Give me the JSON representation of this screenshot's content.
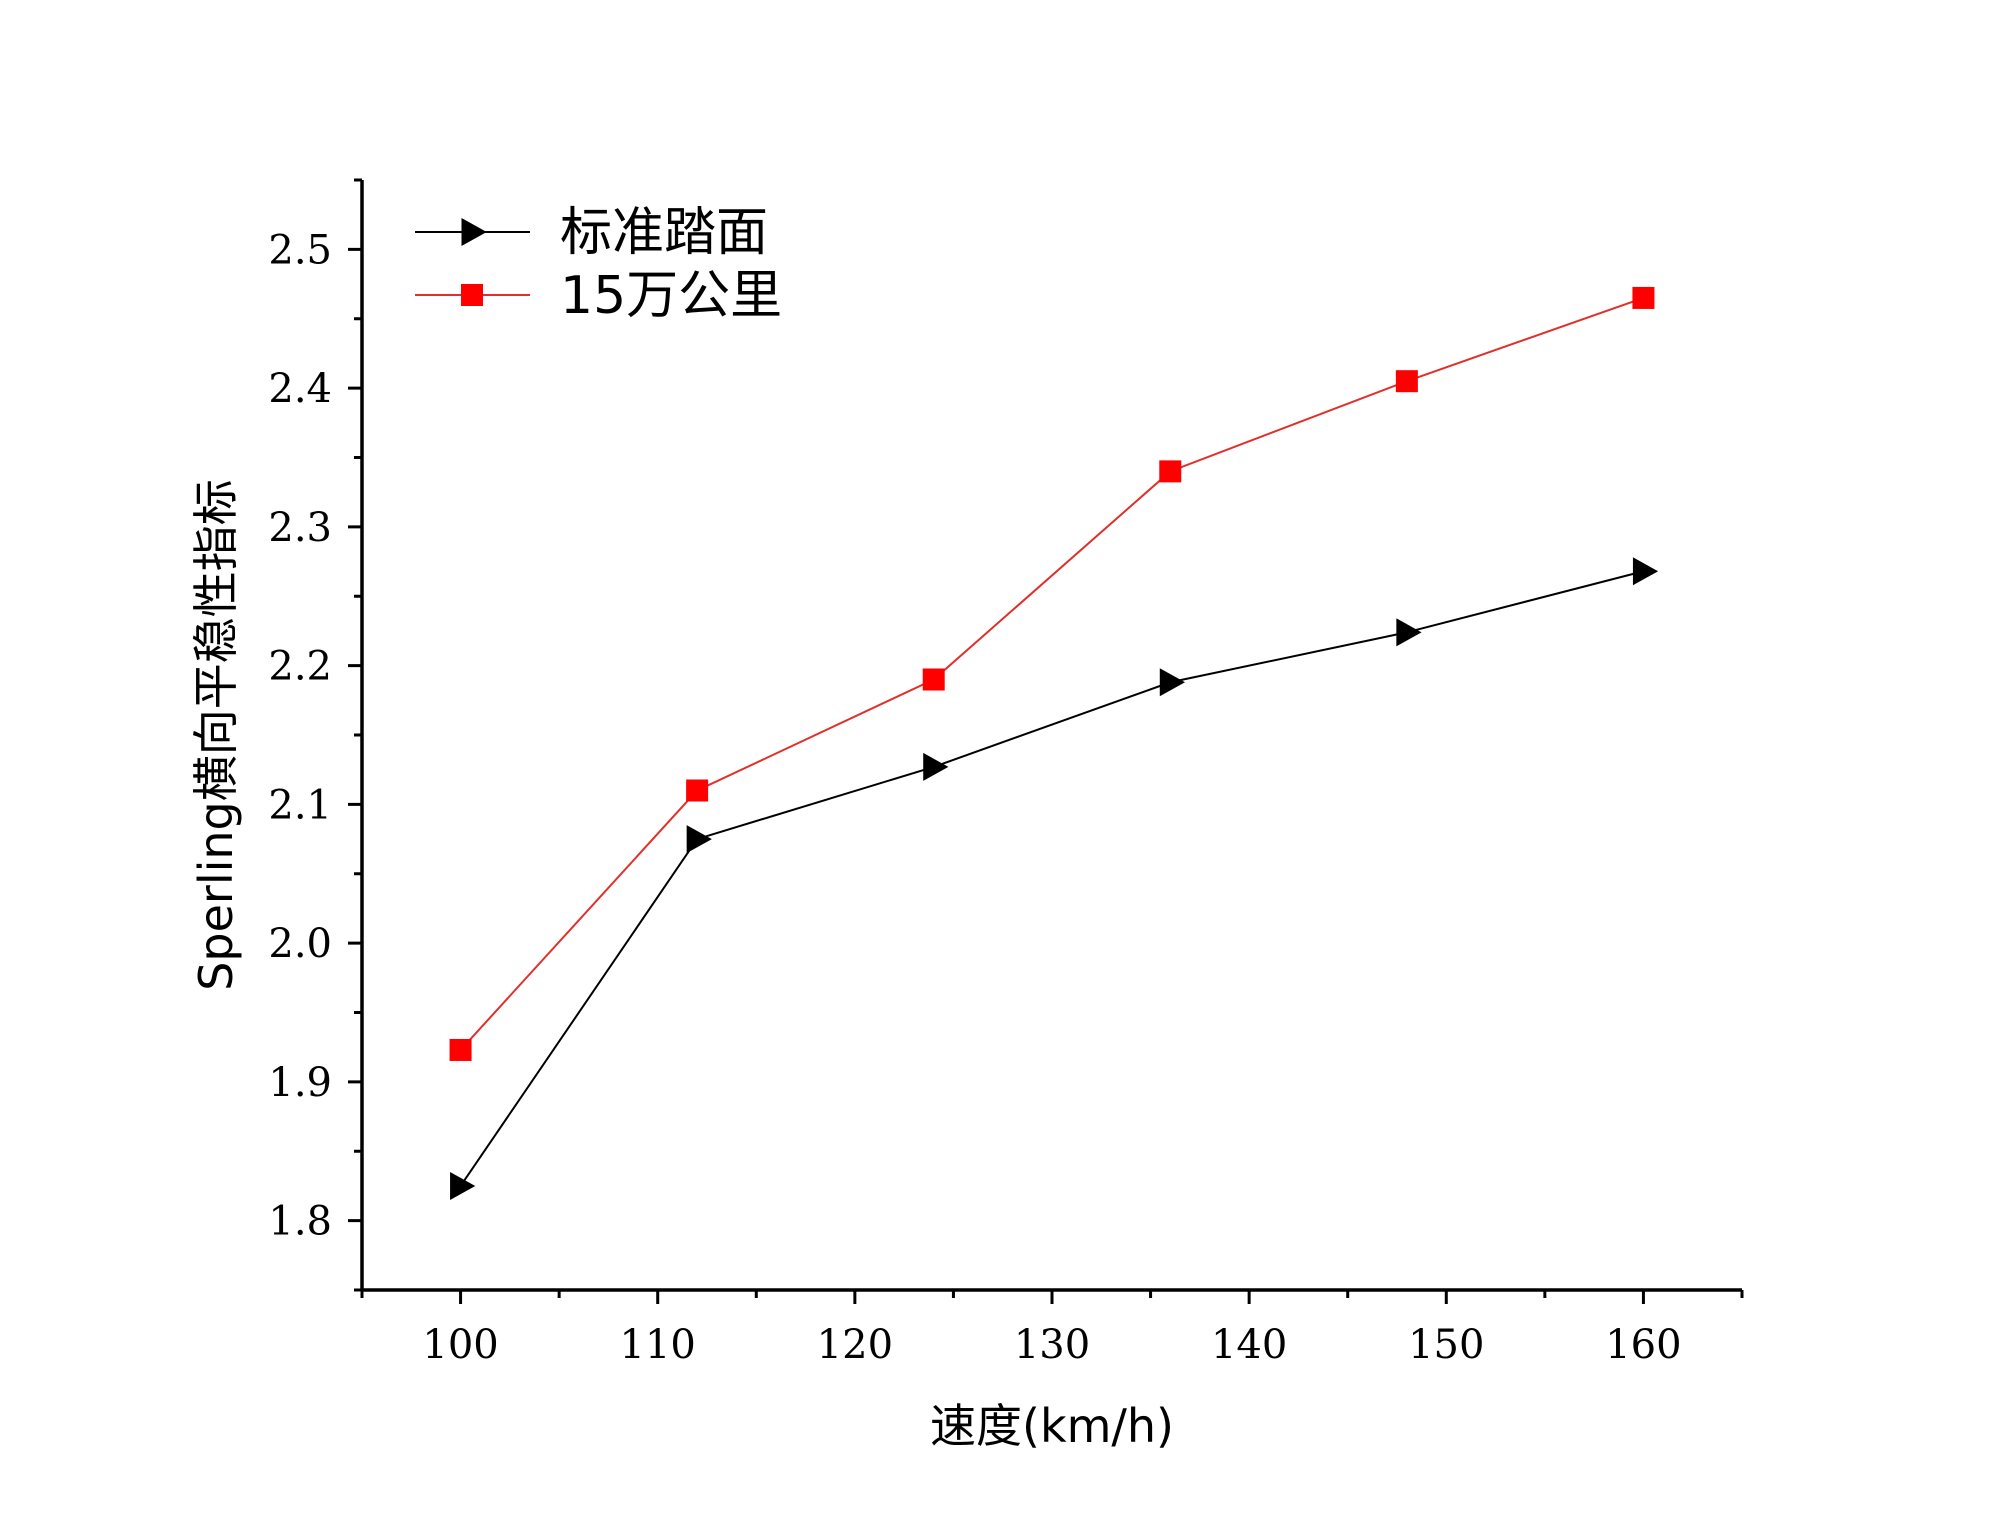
{
  "chart_data": {
    "type": "line",
    "title": "",
    "xlabel": "速度(km/h)",
    "ylabel": "Sperling横向平稳性指标",
    "xlim": [
      95,
      165
    ],
    "ylim": [
      1.75,
      2.55
    ],
    "x_ticks": [
      100,
      110,
      120,
      130,
      140,
      150,
      160
    ],
    "y_ticks": [
      1.8,
      1.9,
      2.0,
      2.1,
      2.2,
      2.3,
      2.4,
      2.5
    ],
    "y_tick_labels": [
      "1.8",
      "1.9",
      "2.0",
      "2.1",
      "2.2",
      "2.3",
      "2.4",
      "2.5"
    ],
    "grid": false,
    "legend_position": "top-left",
    "series": [
      {
        "name": "标准踏面",
        "color": "#000000",
        "marker": "triangle-right",
        "x": [
          100,
          112,
          124,
          136,
          148,
          160
        ],
        "y": [
          1.825,
          2.075,
          2.127,
          2.188,
          2.224,
          2.268
        ]
      },
      {
        "name": "15万公里",
        "color": "#ff0000",
        "line_color": "#e0302a",
        "marker": "square",
        "x": [
          100,
          112,
          124,
          136,
          148,
          160
        ],
        "y": [
          1.923,
          2.11,
          2.19,
          2.34,
          2.405,
          2.465
        ]
      }
    ]
  }
}
